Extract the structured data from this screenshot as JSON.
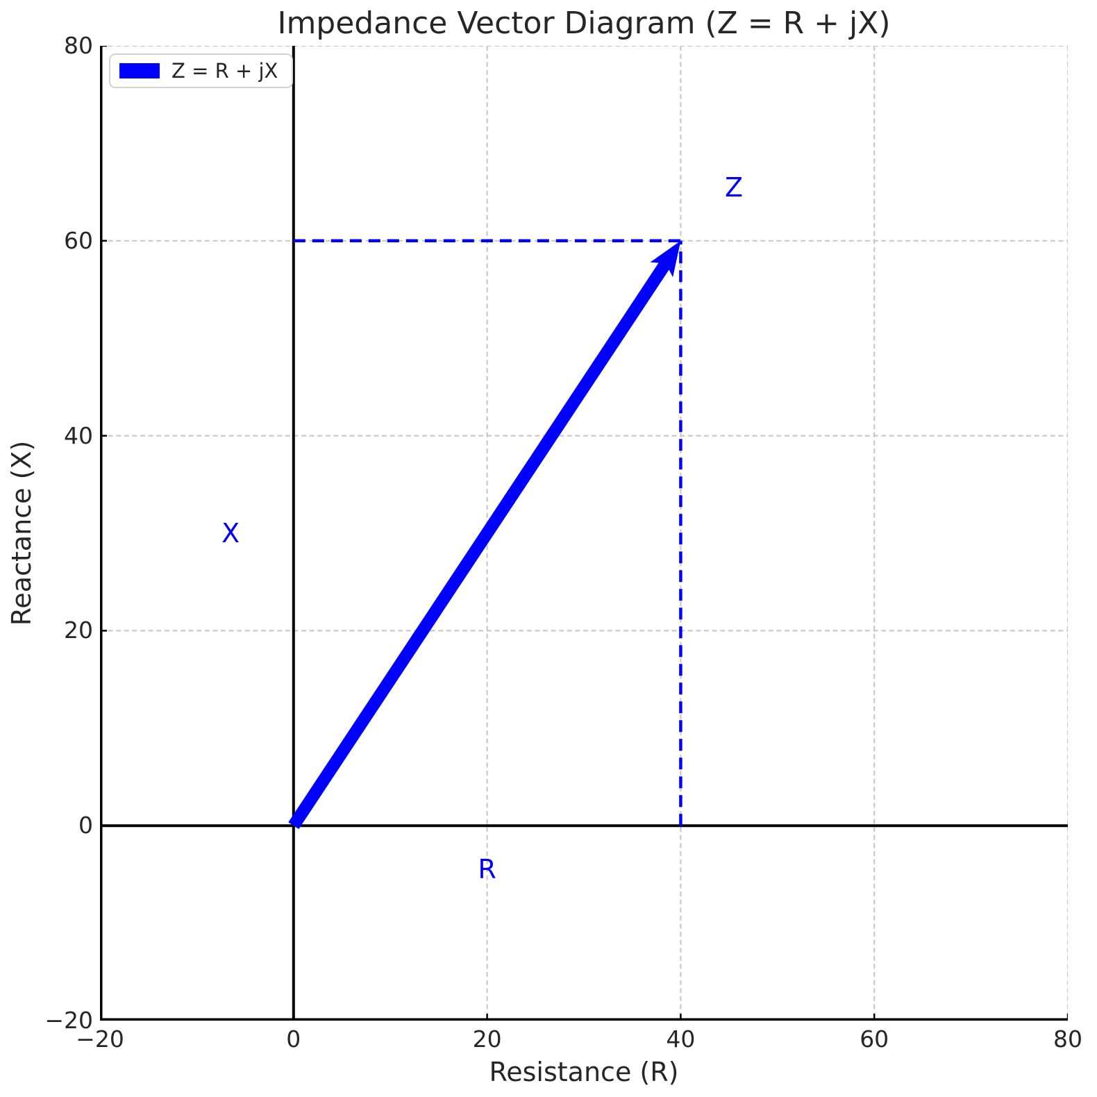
{
  "figure": {
    "title": "Impedance Vector Diagram (Z = R + jX)",
    "xlabel": "Resistance (R)",
    "ylabel": "Reactance (X)"
  },
  "legend": {
    "position": "upper left",
    "entries": [
      {
        "label": "Z = R + jX",
        "color": "#0000ff"
      }
    ]
  },
  "chart_data": {
    "type": "vector",
    "title": "Impedance Vector Diagram (Z = R + jX)",
    "xlabel": "Resistance (R)",
    "ylabel": "Reactance (X)",
    "xlim": [
      -20,
      80
    ],
    "ylim": [
      -20,
      80
    ],
    "xticks": [
      -20,
      0,
      20,
      40,
      60,
      80
    ],
    "yticks": [
      -20,
      0,
      20,
      40,
      60,
      80
    ],
    "grid": true,
    "grid_style": "dashed",
    "legend_position": "upper left",
    "series": [
      {
        "name": "Z = R + jX",
        "type": "vector-arrow",
        "from": [
          0,
          0
        ],
        "to": [
          40,
          60
        ],
        "color": "#0000ff"
      }
    ],
    "reference_lines": [
      {
        "name": "horizontal-projection",
        "from": [
          0,
          60
        ],
        "to": [
          40,
          60
        ],
        "color": "#0000ff",
        "style": "dashed"
      },
      {
        "name": "vertical-projection",
        "from": [
          40,
          0
        ],
        "to": [
          40,
          60
        ],
        "color": "#0000ff",
        "style": "dashed"
      }
    ],
    "zero_axes": {
      "axhline_y": 0,
      "axvline_x": 0,
      "color": "#000000"
    },
    "annotations": [
      {
        "text": "Z",
        "x": 45.5,
        "y": 65.5,
        "color": "#0000ff"
      },
      {
        "text": "X",
        "x": -6.5,
        "y": 30,
        "color": "#0000ff"
      },
      {
        "text": "R",
        "x": 20,
        "y": -4.5,
        "color": "#0000ff"
      }
    ]
  },
  "colors": {
    "vector": "#0000ff",
    "grid": "#c9c9c9",
    "axis": "#000000",
    "spine": "#000000",
    "text": "#262626",
    "background": "#ffffff",
    "legend_border": "#d3d3d3"
  }
}
